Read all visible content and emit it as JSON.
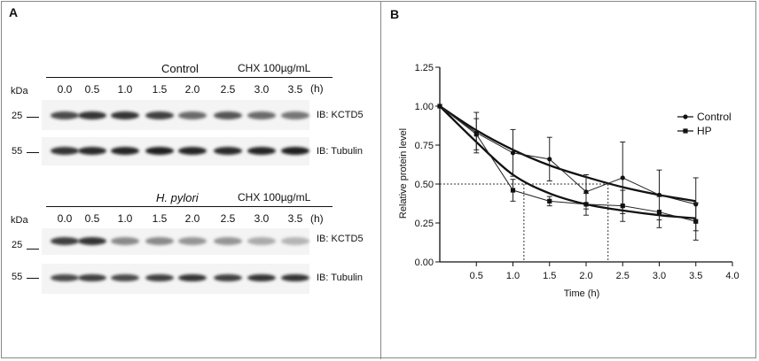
{
  "panel_a": {
    "letter": "A",
    "kda_label": "kDa",
    "treatment_label": "CHX 100µg/mL",
    "time_unit": "(h)",
    "lanes": [
      "0.0",
      "0.5",
      "1.0",
      "1.5",
      "2.0",
      "2.5",
      "3.0",
      "3.5"
    ],
    "top": {
      "condition": "Control",
      "marker_25": "25",
      "marker_55": "55",
      "ib_kctd5": "IB: KCTD5",
      "ib_tubulin": "IB: Tubulin",
      "kctd5_intensity": [
        0.75,
        0.85,
        0.85,
        0.8,
        0.6,
        0.7,
        0.6,
        0.55
      ],
      "tubulin_intensity": [
        0.85,
        0.9,
        0.92,
        0.95,
        0.92,
        0.9,
        0.92,
        0.95
      ]
    },
    "bottom": {
      "condition": "H. pylori",
      "marker_25": "25",
      "marker_55": "55",
      "ib_kctd5": "IB: KCTD5",
      "ib_tubulin": "IB: Tubulin",
      "kctd5_intensity": [
        0.8,
        0.85,
        0.45,
        0.45,
        0.4,
        0.4,
        0.3,
        0.25
      ],
      "tubulin_intensity": [
        0.75,
        0.8,
        0.75,
        0.8,
        0.85,
        0.8,
        0.85,
        0.85
      ]
    }
  },
  "panel_b": {
    "letter": "B",
    "chart_data": {
      "type": "line",
      "xlabel": "Time (h)",
      "ylabel": "Relative protein level",
      "xlim": [
        0,
        4.0
      ],
      "ylim": [
        0,
        1.25
      ],
      "xticks": [
        "0.5",
        "1.0",
        "1.5",
        "2.0",
        "2.5",
        "3.0",
        "3.5",
        "4.0"
      ],
      "yticks": [
        "0.00",
        "0.25",
        "0.50",
        "0.75",
        "1.00",
        "1.25"
      ],
      "x": [
        0,
        0.5,
        1.0,
        1.5,
        2.0,
        2.5,
        3.0,
        3.5
      ],
      "series": [
        {
          "name": "Control",
          "marker": "circle",
          "values": [
            1.0,
            0.83,
            0.7,
            0.66,
            0.45,
            0.54,
            0.43,
            0.37
          ],
          "errors": [
            0,
            0.13,
            0.15,
            0.14,
            0.11,
            0.23,
            0.16,
            0.17
          ],
          "fit": [
            1.0,
            0.845,
            0.72,
            0.62,
            0.545,
            0.48,
            0.43,
            0.39
          ]
        },
        {
          "name": "HP",
          "marker": "square",
          "values": [
            1.0,
            0.82,
            0.46,
            0.39,
            0.37,
            0.36,
            0.32,
            0.26
          ],
          "errors": [
            0,
            0.1,
            0.07,
            0.03,
            0.07,
            0.1,
            0.1,
            0.12
          ],
          "fit": [
            1.0,
            0.77,
            0.56,
            0.44,
            0.37,
            0.33,
            0.3,
            0.28
          ]
        }
      ],
      "half_life_level": 0.5,
      "half_life_times": [
        1.15,
        2.3
      ]
    }
  }
}
